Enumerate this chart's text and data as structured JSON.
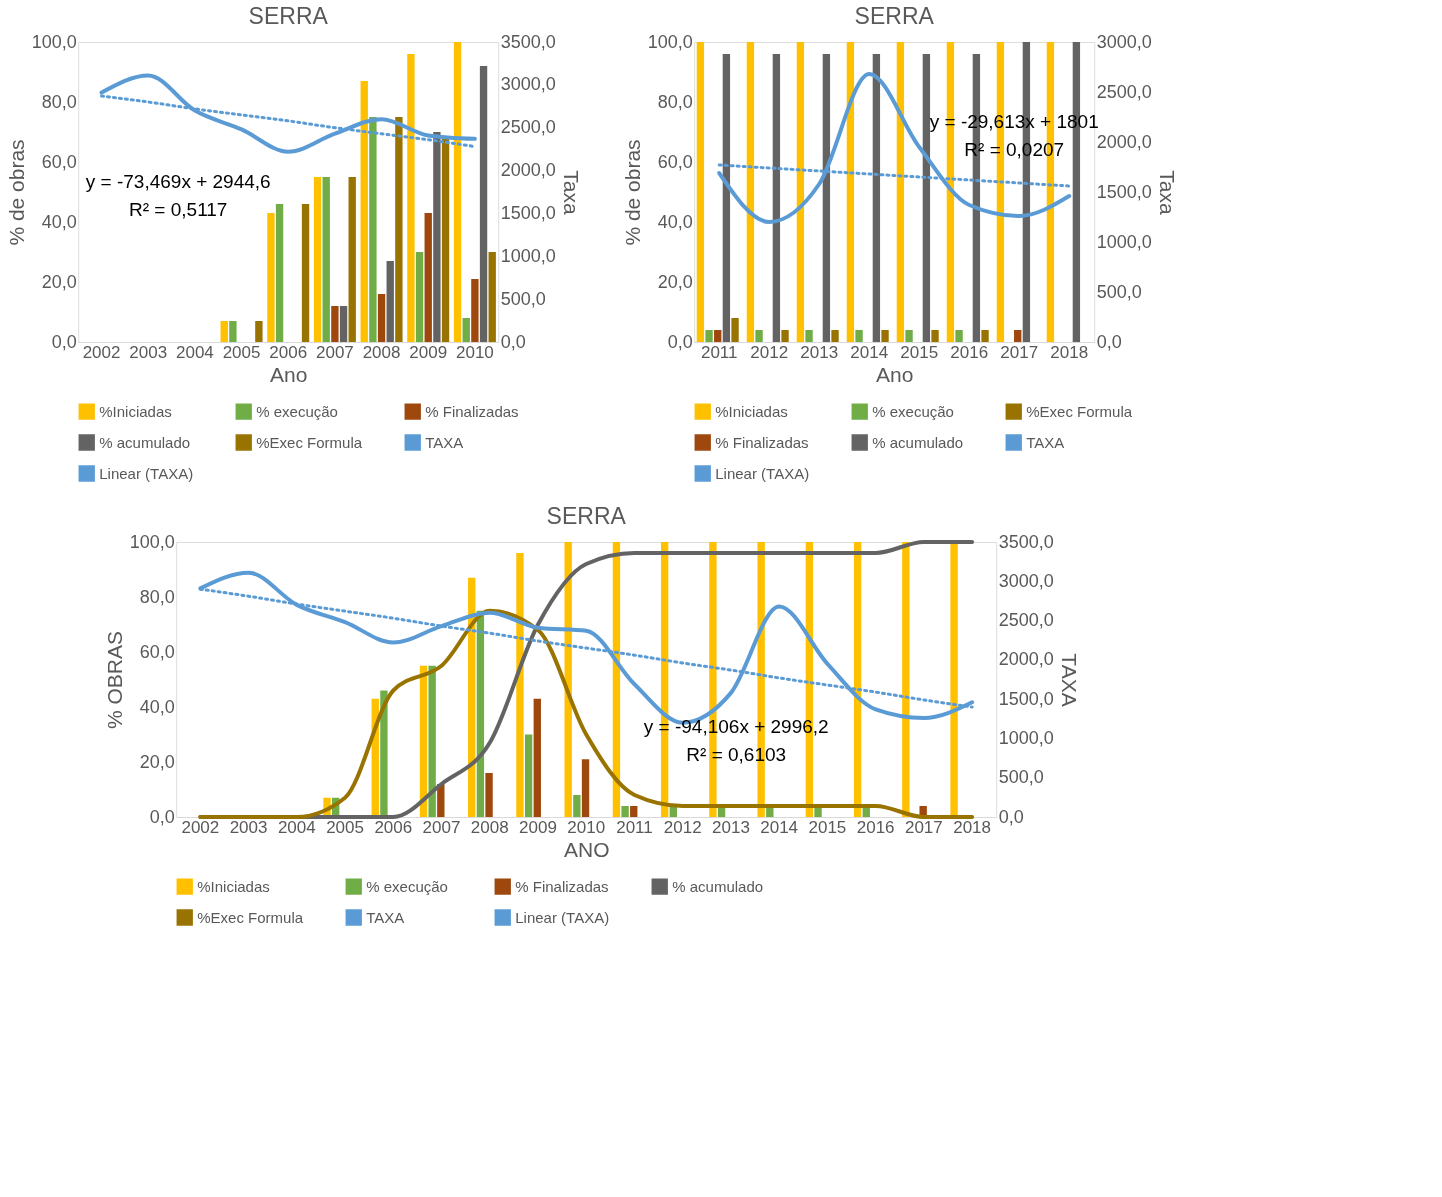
{
  "chart_data": [
    {
      "type": "bar",
      "title": "SERRA",
      "xlabel": "Ano",
      "ylabel": "% de obras",
      "y2label": "Taxa",
      "legend": "bottom",
      "grid": false,
      "categories": [
        "2002",
        "2003",
        "2004",
        "2005",
        "2006",
        "2007",
        "2008",
        "2009",
        "2010"
      ],
      "ylim": [
        0,
        100
      ],
      "yticks": [
        {
          "value": 0,
          "label": "0,0"
        },
        {
          "value": 20,
          "label": "20,0"
        },
        {
          "value": 40,
          "label": "40,0"
        },
        {
          "value": 60,
          "label": "60,0"
        },
        {
          "value": 80,
          "label": "80,0"
        },
        {
          "value": 100,
          "label": "100,0"
        }
      ],
      "y2lim": [
        0,
        3500
      ],
      "y2ticks": [
        {
          "value": 0,
          "label": "0,0"
        },
        {
          "value": 500,
          "label": "500,0"
        },
        {
          "value": 1000,
          "label": "1000,0"
        },
        {
          "value": 1500,
          "label": "1500,0"
        },
        {
          "value": 2000,
          "label": "2000,0"
        },
        {
          "value": 2500,
          "label": "2500,0"
        },
        {
          "value": 3000,
          "label": "3000,0"
        },
        {
          "value": 3500,
          "label": "3500,0"
        }
      ],
      "series": [
        {
          "name": "%Iniciadas",
          "type": "bar",
          "color": "#ffc000",
          "values": [
            0,
            0,
            0,
            7,
            43,
            55,
            87,
            96,
            100
          ]
        },
        {
          "name": "%  execução",
          "type": "bar",
          "color": "#70ad47",
          "values": [
            0,
            0,
            0,
            7,
            46,
            55,
            75,
            30,
            8
          ]
        },
        {
          "name": "% Finalizadas",
          "type": "bar",
          "color": "#9e480e",
          "values": [
            0,
            0,
            0,
            0,
            0,
            12,
            16,
            43,
            21
          ]
        },
        {
          "name": "% acumulado",
          "type": "bar",
          "color": "#636363",
          "values": [
            0,
            0,
            0,
            0,
            0,
            12,
            27,
            70,
            92
          ]
        },
        {
          "name": "%Exec Formula",
          "type": "bar",
          "color": "#997300",
          "values": [
            0,
            0,
            0,
            7,
            46,
            55,
            75,
            68,
            30
          ]
        },
        {
          "name": "TAXA",
          "type": "line",
          "axis": "y2",
          "color": "#5b9bd5",
          "line_style": "solid",
          "values": [
            2910,
            3110,
            2700,
            2480,
            2220,
            2430,
            2600,
            2410,
            2370
          ]
        },
        {
          "name": "Linear (TAXA)",
          "type": "line",
          "axis": "y2",
          "color": "#5b9bd5",
          "line_style": "dotted",
          "values": [
            2870,
            2800,
            2720,
            2650,
            2580,
            2500,
            2430,
            2360,
            2280
          ]
        }
      ],
      "annotations": [
        "y = -73,469x + 2944,6",
        "R² = 0,5117"
      ]
    },
    {
      "type": "bar",
      "title": "SERRA",
      "xlabel": "Ano",
      "ylabel": "% de obras",
      "y2label": "Taxa",
      "legend": "bottom",
      "grid": false,
      "categories": [
        "2011",
        "2012",
        "2013",
        "2014",
        "2015",
        "2016",
        "2017",
        "2018"
      ],
      "ylim": [
        0,
        100
      ],
      "yticks": [
        {
          "value": 0,
          "label": "0,0"
        },
        {
          "value": 20,
          "label": "20,0"
        },
        {
          "value": 40,
          "label": "40,0"
        },
        {
          "value": 60,
          "label": "60,0"
        },
        {
          "value": 80,
          "label": "80,0"
        },
        {
          "value": 100,
          "label": "100,0"
        }
      ],
      "y2lim": [
        0,
        3000
      ],
      "y2ticks": [
        {
          "value": 0,
          "label": "0,0"
        },
        {
          "value": 500,
          "label": "500,0"
        },
        {
          "value": 1000,
          "label": "1000,0"
        },
        {
          "value": 1500,
          "label": "1500,0"
        },
        {
          "value": 2000,
          "label": "2000,0"
        },
        {
          "value": 2500,
          "label": "2500,0"
        },
        {
          "value": 3000,
          "label": "3000,0"
        }
      ],
      "series": [
        {
          "name": "%Iniciadas",
          "type": "bar",
          "color": "#ffc000",
          "values": [
            100,
            100,
            100,
            100,
            100,
            100,
            100,
            100
          ]
        },
        {
          "name": "%  execução",
          "type": "bar",
          "color": "#70ad47",
          "values": [
            4,
            4,
            4,
            4,
            4,
            4,
            0,
            0
          ]
        },
        {
          "name": "%Exec Formula",
          "type": "bar",
          "color": "#997300",
          "values": [
            8,
            4,
            4,
            4,
            4,
            4,
            0,
            0
          ]
        },
        {
          "name": "% Finalizadas",
          "type": "bar",
          "color": "#9e480e",
          "values": [
            4,
            0,
            0,
            0,
            0,
            0,
            4,
            0
          ]
        },
        {
          "name": "% acumulado",
          "type": "bar",
          "color": "#636363",
          "values": [
            96,
            96,
            96,
            96,
            96,
            96,
            100,
            100
          ]
        },
        {
          "name": "TAXA",
          "type": "line",
          "axis": "y2",
          "color": "#5b9bd5",
          "line_style": "solid",
          "values": [
            1690,
            1200,
            1580,
            2680,
            1950,
            1370,
            1260,
            1460
          ]
        },
        {
          "name": "Linear (TAXA)",
          "type": "line",
          "axis": "y2",
          "color": "#5b9bd5",
          "line_style": "dotted",
          "values": [
            1770,
            1740,
            1710,
            1680,
            1650,
            1620,
            1590,
            1560
          ]
        }
      ],
      "annotations": [
        "y = -29,613x + 1801",
        "R² = 0,0207"
      ]
    },
    {
      "type": "bar",
      "title": "SERRA",
      "xlabel": "ANO",
      "ylabel": "% OBRAS",
      "y2label": "TAXA",
      "legend": "bottom",
      "grid": false,
      "categories": [
        "2002",
        "2003",
        "2004",
        "2005",
        "2006",
        "2007",
        "2008",
        "2009",
        "2010",
        "2011",
        "2012",
        "2013",
        "2014",
        "2015",
        "2016",
        "2017",
        "2018"
      ],
      "ylim": [
        0,
        100
      ],
      "yticks": [
        {
          "value": 0,
          "label": "0,0"
        },
        {
          "value": 20,
          "label": "20,0"
        },
        {
          "value": 40,
          "label": "40,0"
        },
        {
          "value": 60,
          "label": "60,0"
        },
        {
          "value": 80,
          "label": "80,0"
        },
        {
          "value": 100,
          "label": "100,0"
        }
      ],
      "y2lim": [
        0,
        3500
      ],
      "y2ticks": [
        {
          "value": 0,
          "label": "0,0"
        },
        {
          "value": 500,
          "label": "500,0"
        },
        {
          "value": 1000,
          "label": "1000,0"
        },
        {
          "value": 1500,
          "label": "1500,0"
        },
        {
          "value": 2000,
          "label": "2000,0"
        },
        {
          "value": 2500,
          "label": "2500,0"
        },
        {
          "value": 3000,
          "label": "3000,0"
        },
        {
          "value": 3500,
          "label": "3500,0"
        }
      ],
      "series": [
        {
          "name": "%Iniciadas",
          "type": "bar",
          "color": "#ffc000",
          "values": [
            0,
            0,
            0,
            7,
            43,
            55,
            87,
            96,
            100,
            100,
            100,
            100,
            100,
            100,
            100,
            100,
            100
          ]
        },
        {
          "name": "%  execução",
          "type": "bar",
          "color": "#70ad47",
          "values": [
            0,
            0,
            0,
            7,
            46,
            55,
            75,
            30,
            8,
            4,
            4,
            4,
            4,
            4,
            4,
            0,
            0
          ]
        },
        {
          "name": "% Finalizadas",
          "type": "bar",
          "color": "#9e480e",
          "values": [
            0,
            0,
            0,
            0,
            0,
            12,
            16,
            43,
            21,
            4,
            0,
            0,
            0,
            0,
            0,
            4,
            0
          ]
        },
        {
          "name": "% acumulado",
          "type": "line",
          "color": "#636363",
          "line_style": "solid",
          "values": [
            0,
            0,
            0,
            0,
            0,
            12,
            27,
            70,
            92,
            96,
            96,
            96,
            96,
            96,
            96,
            100,
            100
          ]
        },
        {
          "name": "%Exec Formula",
          "type": "line",
          "color": "#997300",
          "line_style": "solid",
          "values": [
            0,
            0,
            0,
            7,
            46,
            55,
            75,
            68,
            30,
            8,
            4,
            4,
            4,
            4,
            4,
            0,
            0
          ]
        },
        {
          "name": "TAXA",
          "type": "line",
          "axis": "y2",
          "color": "#5b9bd5",
          "line_style": "solid",
          "values": [
            2910,
            3110,
            2700,
            2480,
            2220,
            2430,
            2600,
            2410,
            2370,
            1690,
            1200,
            1580,
            2680,
            1950,
            1370,
            1260,
            1460
          ]
        },
        {
          "name": "Linear (TAXA)",
          "type": "line",
          "axis": "y2",
          "color": "#5b9bd5",
          "line_style": "dotted",
          "values": [
            2900,
            2810,
            2710,
            2620,
            2530,
            2430,
            2340,
            2240,
            2150,
            2060,
            1960,
            1870,
            1770,
            1680,
            1590,
            1490,
            1400
          ]
        }
      ],
      "annotations": [
        "y = -94,106x + 2996,2",
        "R² = 0,6103"
      ]
    }
  ]
}
